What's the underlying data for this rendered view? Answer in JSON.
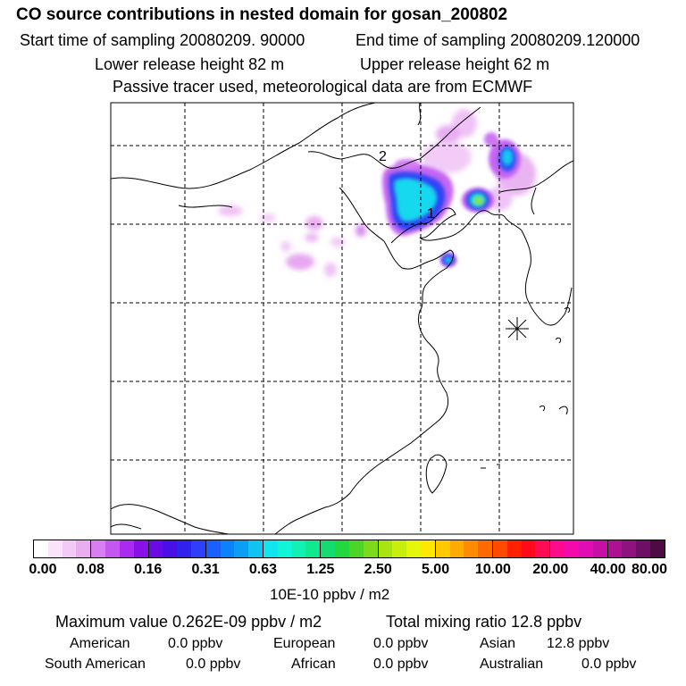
{
  "header": {
    "title": "CO  source contributions in nested domain for gosan_200802",
    "start_time": "Start time of sampling 20080209. 90000",
    "end_time": "End time of sampling 20080209.120000",
    "lower_height": "Lower release height   82 m",
    "upper_height": "Upper release height   62 m",
    "note": "Passive tracer used, meteorological data are from ECMWF"
  },
  "map": {
    "labels": [
      "2",
      "1"
    ],
    "receptor_marker": "asterisk-marker-icon"
  },
  "colorbar": {
    "ticks": [
      "0.00",
      "0.08",
      "0.16",
      "0.31",
      "0.63",
      "1.25",
      "2.50",
      "5.00",
      "10.00",
      "20.00",
      "40.00",
      "80.00"
    ],
    "unit": "10E-10 ppbv / m2",
    "colors": [
      "#ffffff",
      "#fbe3fb",
      "#f3c9f5",
      "#e9adf0",
      "#d77ff0",
      "#c457f2",
      "#a92bf0",
      "#8a10ea",
      "#6a0be6",
      "#4a0ee6",
      "#3022ee",
      "#2d3ffb",
      "#1a60ff",
      "#0b82fa",
      "#0a9ff4",
      "#11c3f2",
      "#11e6f0",
      "#10f5d8",
      "#12f0b2",
      "#0fe990",
      "#13dd6e",
      "#22d83c",
      "#4ed427",
      "#7dda1b",
      "#a8e40f",
      "#c8ee0d",
      "#e5f50c",
      "#ffe700",
      "#ffc800",
      "#ffaa00",
      "#ff8c00",
      "#ff6a00",
      "#ff4a00",
      "#ff2000",
      "#ff0a1a",
      "#ff0a55",
      "#ff0a8c",
      "#f40aaa",
      "#e10cb4",
      "#c70ea6",
      "#ae1093",
      "#8e137e",
      "#6d0f62",
      "#4d0a45"
    ]
  },
  "stats": {
    "max_line": "Maximum value  0.262E-09 ppbv / m2",
    "total_line": "Total mixing ratio       12.8 ppbv",
    "regions": [
      {
        "name": "American",
        "value": "0.0 ppbv"
      },
      {
        "name": "European",
        "value": "0.0 ppbv"
      },
      {
        "name": "Asian",
        "value": "12.8 ppbv"
      },
      {
        "name": "South American",
        "value": "0.0 ppbv"
      },
      {
        "name": "African",
        "value": "0.0 ppbv"
      },
      {
        "name": "Australian",
        "value": "0.0 ppbv"
      }
    ]
  }
}
